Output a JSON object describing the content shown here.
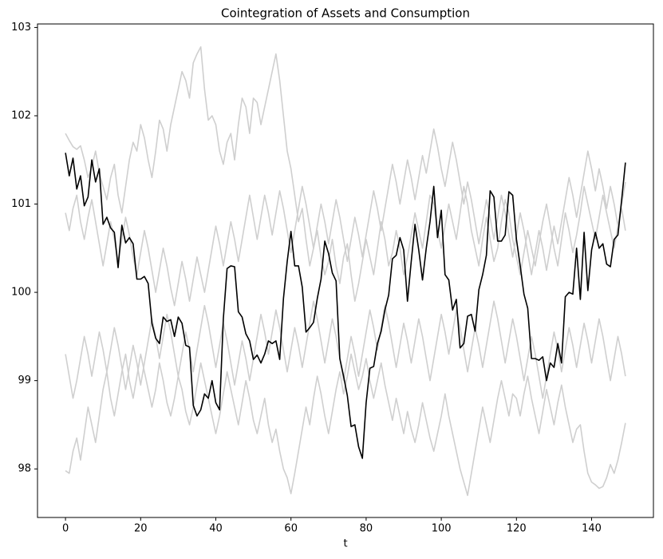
{
  "chart_data": {
    "type": "line",
    "title": "Cointegration of Assets and Consumption",
    "xlabel": "t",
    "x": [
      0,
      1,
      2,
      3,
      4,
      5,
      6,
      7,
      8,
      9,
      10,
      11,
      12,
      13,
      14,
      15,
      16,
      17,
      18,
      19,
      20,
      21,
      22,
      23,
      24,
      25,
      26,
      27,
      28,
      29,
      30,
      31,
      32,
      33,
      34,
      35,
      36,
      37,
      38,
      39,
      40,
      41,
      42,
      43,
      44,
      45,
      46,
      47,
      48,
      49,
      50,
      51,
      52,
      53,
      54,
      55,
      56,
      57,
      58,
      59,
      60,
      61,
      62,
      63,
      64,
      65,
      66,
      67,
      68,
      69,
      70,
      71,
      72,
      73,
      74,
      75,
      76,
      77,
      78,
      79,
      80,
      81,
      82,
      83,
      84,
      85,
      86,
      87,
      88,
      89,
      90,
      91,
      92,
      93,
      94,
      95,
      96,
      97,
      98,
      99,
      100,
      101,
      102,
      103,
      104,
      105,
      106,
      107,
      108,
      109,
      110,
      111,
      112,
      113,
      114,
      115,
      116,
      117,
      118,
      119,
      120,
      121,
      122,
      123,
      124,
      125,
      126,
      127,
      128,
      129,
      130,
      131,
      132,
      133,
      134,
      135,
      136,
      137,
      138,
      139,
      140,
      141,
      142,
      143,
      144,
      145,
      146,
      147,
      148,
      149
    ],
    "series": [
      {
        "color": "#cfcfcf",
        "values": [
          101.8,
          101.72,
          101.65,
          101.62,
          101.66,
          101.5,
          101.3,
          101.42,
          101.6,
          101.35,
          101.2,
          101.05,
          101.3,
          101.45,
          101.1,
          100.9,
          101.2,
          101.5,
          101.7,
          101.6,
          101.9,
          101.75,
          101.5,
          101.3,
          101.6,
          101.95,
          101.85,
          101.6,
          101.9,
          102.1,
          102.3,
          102.5,
          102.4,
          102.2,
          102.6,
          102.7,
          102.78,
          102.3,
          101.95,
          102.0,
          101.9,
          101.6,
          101.45,
          101.7,
          101.8,
          101.5,
          101.9,
          102.2,
          102.1,
          101.8,
          102.2,
          102.15,
          101.9,
          102.1,
          102.3,
          102.5,
          102.7,
          102.4,
          102.0,
          101.6,
          101.4,
          101.1,
          100.8,
          100.95,
          100.6,
          100.3,
          100.5,
          100.7,
          100.4,
          100.2,
          100.35,
          100.6,
          100.3,
          100.1,
          100.4,
          100.55,
          100.2,
          99.9,
          100.1,
          100.35,
          100.6,
          100.4,
          100.2,
          100.5,
          100.8,
          100.6,
          100.3,
          100.45,
          100.7,
          100.5,
          100.2,
          100.4,
          100.65,
          100.9,
          100.7,
          100.5,
          100.8,
          101.1,
          101.0,
          100.7,
          100.5,
          100.75,
          101.0,
          100.8,
          100.6,
          100.9,
          101.2,
          101.0,
          100.7,
          100.5,
          100.3,
          100.6,
          100.85,
          100.6,
          100.35,
          100.5,
          100.8,
          101.05,
          100.9,
          100.6,
          100.4,
          100.2,
          100.45,
          100.7,
          100.5,
          100.3,
          100.55,
          100.8,
          101.0,
          100.75,
          100.5,
          100.3,
          100.6,
          100.9,
          100.7,
          100.45,
          100.65,
          100.9,
          101.2,
          101.0,
          100.8,
          100.6,
          100.85,
          101.1,
          100.9,
          100.7,
          100.5,
          100.75,
          100.95,
          100.7
        ]
      },
      {
        "color": "#cfcfcf",
        "values": [
          97.98,
          97.95,
          98.2,
          98.35,
          98.1,
          98.4,
          98.7,
          98.5,
          98.3,
          98.6,
          98.9,
          99.1,
          98.8,
          98.6,
          98.85,
          99.1,
          99.3,
          99.0,
          98.8,
          99.05,
          99.3,
          99.1,
          98.9,
          98.7,
          98.9,
          99.2,
          99.0,
          98.75,
          98.6,
          98.8,
          99.05,
          98.9,
          98.65,
          98.5,
          98.7,
          98.95,
          99.2,
          99.0,
          98.8,
          98.6,
          98.4,
          98.6,
          98.85,
          99.1,
          98.9,
          98.7,
          98.5,
          98.75,
          99.0,
          98.8,
          98.55,
          98.4,
          98.6,
          98.8,
          98.5,
          98.3,
          98.45,
          98.2,
          98.0,
          97.9,
          97.72,
          97.95,
          98.2,
          98.45,
          98.7,
          98.5,
          98.8,
          99.05,
          98.85,
          98.6,
          98.4,
          98.65,
          98.9,
          99.1,
          98.85,
          99.05,
          99.3,
          99.1,
          98.9,
          99.05,
          99.25,
          99.0,
          98.8,
          99.0,
          99.2,
          98.95,
          98.75,
          98.55,
          98.8,
          98.6,
          98.4,
          98.65,
          98.45,
          98.3,
          98.5,
          98.75,
          98.55,
          98.35,
          98.2,
          98.4,
          98.6,
          98.85,
          98.6,
          98.4,
          98.2,
          98.0,
          97.85,
          97.7,
          97.95,
          98.2,
          98.45,
          98.7,
          98.5,
          98.3,
          98.55,
          98.8,
          99.0,
          98.8,
          98.6,
          98.85,
          98.8,
          98.6,
          98.85,
          99.05,
          98.8,
          98.6,
          98.4,
          98.65,
          98.9,
          98.7,
          98.5,
          98.75,
          98.95,
          98.7,
          98.5,
          98.3,
          98.45,
          98.5,
          98.2,
          97.95,
          97.85,
          97.82,
          97.78,
          97.8,
          97.9,
          98.05,
          97.95,
          98.1,
          98.3,
          98.52
        ]
      },
      {
        "color": "#cfcfcf",
        "values": [
          100.9,
          100.7,
          100.95,
          101.1,
          100.8,
          100.6,
          100.85,
          101.05,
          100.8,
          100.55,
          100.3,
          100.55,
          100.8,
          100.6,
          100.35,
          100.6,
          100.85,
          100.65,
          100.4,
          100.2,
          100.45,
          100.7,
          100.5,
          100.25,
          100.0,
          100.25,
          100.5,
          100.3,
          100.05,
          99.85,
          100.1,
          100.35,
          100.15,
          99.9,
          100.15,
          100.4,
          100.2,
          100.0,
          100.25,
          100.5,
          100.75,
          100.55,
          100.3,
          100.55,
          100.8,
          100.6,
          100.35,
          100.6,
          100.85,
          101.1,
          100.85,
          100.6,
          100.85,
          101.1,
          100.9,
          100.65,
          100.9,
          101.15,
          100.95,
          100.7,
          100.45,
          100.7,
          100.95,
          101.2,
          101.0,
          100.75,
          100.5,
          100.75,
          101.0,
          100.8,
          100.55,
          100.8,
          101.05,
          100.85,
          100.6,
          100.35,
          100.6,
          100.85,
          100.65,
          100.4,
          100.65,
          100.9,
          101.15,
          100.95,
          100.7,
          100.95,
          101.2,
          101.45,
          101.25,
          101.0,
          101.25,
          101.5,
          101.3,
          101.05,
          101.3,
          101.55,
          101.35,
          101.6,
          101.85,
          101.65,
          101.4,
          101.2,
          101.45,
          101.7,
          101.5,
          101.25,
          101.0,
          101.25,
          101.05,
          100.8,
          100.55,
          100.8,
          101.05,
          100.85,
          100.6,
          100.85,
          101.1,
          100.9,
          100.65,
          100.4,
          100.65,
          100.9,
          100.7,
          100.45,
          100.2,
          100.45,
          100.7,
          100.5,
          100.25,
          100.5,
          100.75,
          100.55,
          100.8,
          101.05,
          101.3,
          101.1,
          100.85,
          101.1,
          101.35,
          101.6,
          101.4,
          101.15,
          101.4,
          101.2,
          100.95,
          101.2,
          101.0,
          100.75,
          101.0,
          101.25
        ]
      },
      {
        "color": "#cfcfcf",
        "values": [
          99.3,
          99.05,
          98.8,
          99.0,
          99.25,
          99.5,
          99.3,
          99.05,
          99.3,
          99.55,
          99.35,
          99.1,
          99.35,
          99.6,
          99.4,
          99.15,
          98.9,
          99.15,
          99.4,
          99.2,
          98.95,
          99.2,
          99.45,
          99.7,
          99.5,
          99.25,
          99.5,
          99.75,
          99.55,
          99.3,
          99.05,
          99.3,
          99.55,
          99.35,
          99.1,
          99.35,
          99.6,
          99.85,
          99.65,
          99.4,
          99.15,
          99.4,
          99.65,
          99.45,
          99.2,
          98.95,
          99.2,
          99.45,
          99.25,
          99.0,
          99.25,
          99.5,
          99.75,
          99.55,
          99.3,
          99.55,
          99.8,
          99.6,
          99.35,
          99.1,
          99.35,
          99.6,
          99.4,
          99.15,
          99.4,
          99.65,
          99.9,
          99.7,
          99.45,
          99.2,
          99.45,
          99.7,
          99.5,
          99.25,
          99.0,
          99.25,
          99.5,
          99.3,
          99.05,
          99.3,
          99.55,
          99.8,
          99.6,
          99.35,
          99.6,
          99.85,
          99.65,
          99.4,
          99.15,
          99.4,
          99.65,
          99.45,
          99.2,
          99.45,
          99.7,
          99.5,
          99.25,
          99.0,
          99.25,
          99.5,
          99.75,
          99.55,
          99.3,
          99.55,
          99.8,
          99.6,
          99.35,
          99.1,
          99.35,
          99.6,
          99.4,
          99.15,
          99.4,
          99.65,
          99.9,
          99.7,
          99.45,
          99.2,
          99.45,
          99.7,
          99.5,
          99.25,
          99.0,
          99.25,
          99.5,
          99.3,
          99.05,
          98.8,
          99.05,
          99.3,
          99.55,
          99.35,
          99.1,
          99.35,
          99.6,
          99.4,
          99.15,
          99.4,
          99.65,
          99.45,
          99.2,
          99.45,
          99.7,
          99.5,
          99.25,
          99.0,
          99.25,
          99.5,
          99.3,
          99.05
        ]
      },
      {
        "color": "#000000",
        "values": [
          101.58,
          101.32,
          101.52,
          101.17,
          101.32,
          100.98,
          101.08,
          101.5,
          101.25,
          101.4,
          100.77,
          100.85,
          100.73,
          100.68,
          100.28,
          100.76,
          100.56,
          100.62,
          100.55,
          100.15,
          100.15,
          100.18,
          100.1,
          99.65,
          99.48,
          99.42,
          99.72,
          99.67,
          99.69,
          99.5,
          99.72,
          99.65,
          99.4,
          99.38,
          98.72,
          98.6,
          98.67,
          98.85,
          98.8,
          99.0,
          98.75,
          98.67,
          99.7,
          100.27,
          100.3,
          100.29,
          99.78,
          99.72,
          99.53,
          99.45,
          99.24,
          99.29,
          99.2,
          99.3,
          99.45,
          99.42,
          99.45,
          99.24,
          99.93,
          100.35,
          100.69,
          100.3,
          100.3,
          100.06,
          99.55,
          99.6,
          99.66,
          99.93,
          100.15,
          100.58,
          100.44,
          100.22,
          100.13,
          99.25,
          99.05,
          98.83,
          98.48,
          98.5,
          98.25,
          98.12,
          98.75,
          99.14,
          99.16,
          99.42,
          99.56,
          99.8,
          99.97,
          100.38,
          100.42,
          100.62,
          100.48,
          99.9,
          100.35,
          100.77,
          100.48,
          100.14,
          100.5,
          100.8,
          101.2,
          100.62,
          100.93,
          100.2,
          100.14,
          99.8,
          99.92,
          99.37,
          99.42,
          99.73,
          99.75,
          99.56,
          100.03,
          100.2,
          100.42,
          101.15,
          101.08,
          100.58,
          100.58,
          100.65,
          101.14,
          101.1,
          100.6,
          100.3,
          99.98,
          99.82,
          99.25,
          99.25,
          99.23,
          99.27,
          99.0,
          99.2,
          99.15,
          99.42,
          99.2,
          99.95,
          100.0,
          99.98,
          100.5,
          99.92,
          100.68,
          100.02,
          100.48,
          100.68,
          100.5,
          100.55,
          100.32,
          100.29,
          100.6,
          100.65,
          101.05,
          101.47
        ]
      }
    ],
    "xlim": [
      -7.45,
      156.45
    ],
    "ylim": [
      97.45,
      103.04
    ],
    "xticks": [
      0,
      20,
      40,
      60,
      80,
      100,
      120,
      140
    ],
    "yticks": [
      98,
      99,
      100,
      101,
      102,
      103
    ]
  }
}
